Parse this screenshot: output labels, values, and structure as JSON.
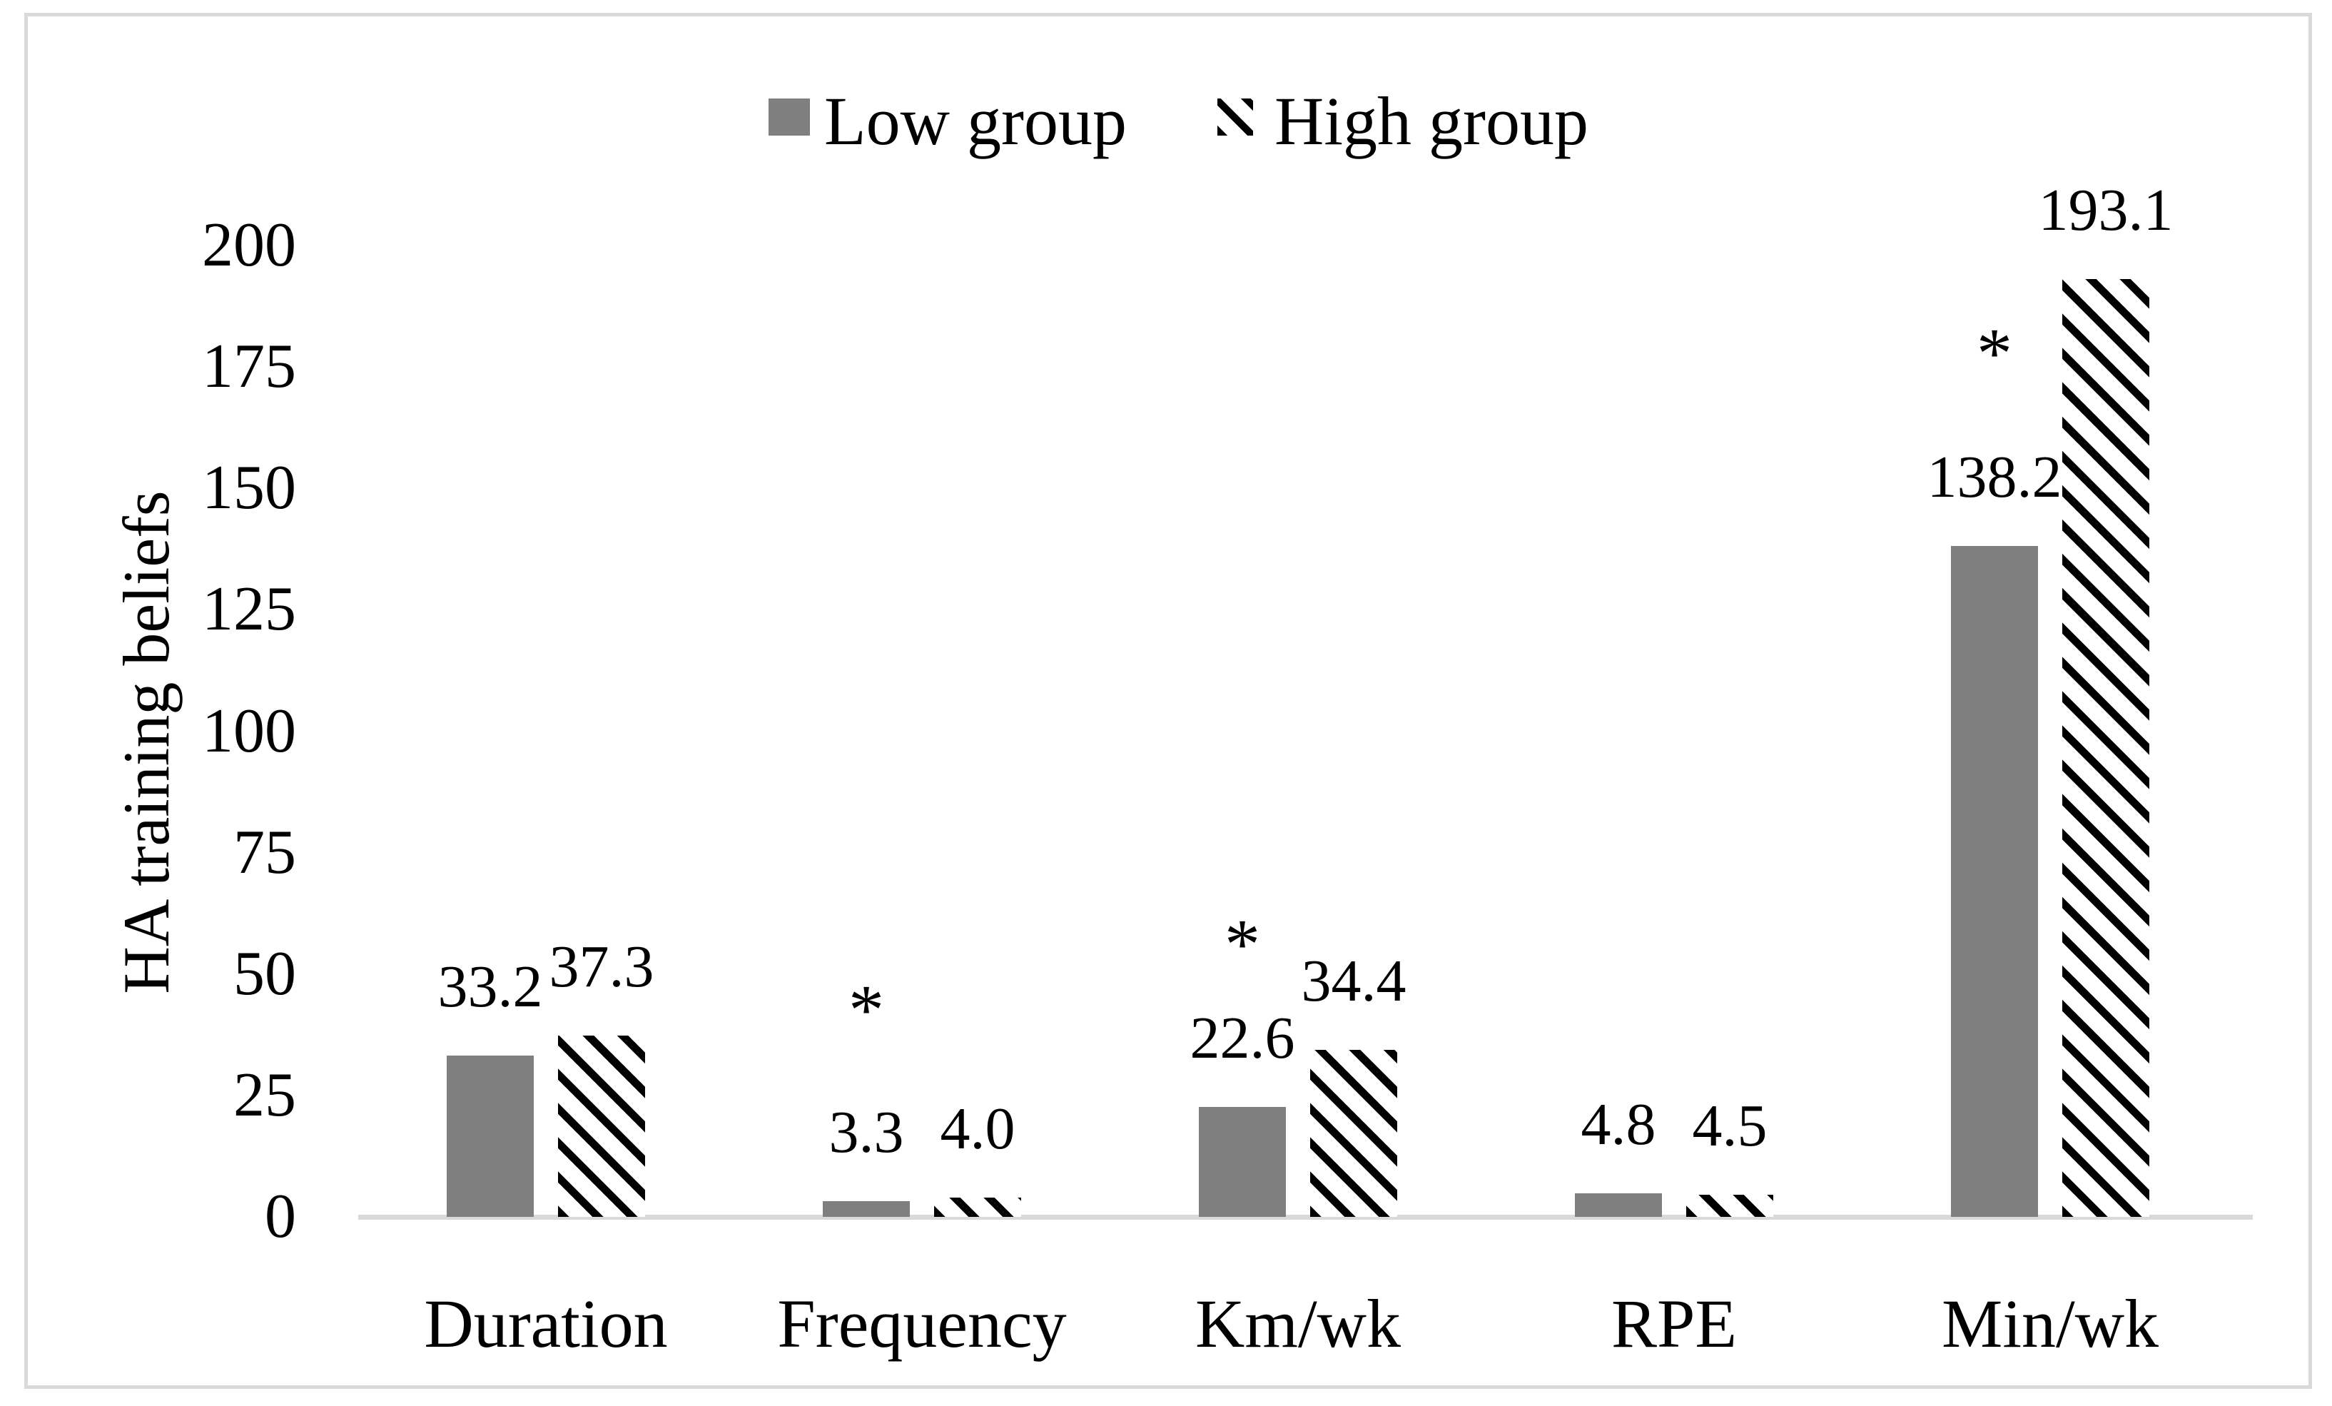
{
  "figure": {
    "kind": "journal-figure-bar-chart",
    "background": "#ffffff",
    "border_color": "#d9d9d9"
  },
  "legend": {
    "position": "top-center",
    "items": [
      {
        "label": "Low group",
        "swatch": "solid-gray-square"
      },
      {
        "label": "High group",
        "swatch": "diagonal-hatch-square"
      }
    ]
  },
  "chart_data": {
    "type": "bar",
    "title": "",
    "categories": [
      "Duration",
      "Frequency",
      "Km/wk",
      "RPE",
      "Min/wk"
    ],
    "series": [
      {
        "name": "Low group",
        "style": "solid",
        "color": "#7f7f7f",
        "values": [
          33.2,
          3.3,
          22.6,
          4.8,
          138.2
        ],
        "labels": [
          "33.2",
          "3.3",
          "22.6",
          "4.8",
          "138.2"
        ]
      },
      {
        "name": "High group",
        "style": "diagonal-hatch",
        "color": "#000000",
        "values": [
          37.3,
          4.0,
          34.4,
          4.5,
          193.1
        ],
        "labels": [
          "37.3",
          "4.0",
          "34.4",
          "4.5",
          "193.1"
        ]
      }
    ],
    "significance_markers": {
      "symbol": "*",
      "categories": [
        "Frequency",
        "Km/wk",
        "Min/wk"
      ]
    },
    "xlabel": "",
    "ylabel": "HA training beliefs",
    "yticks": [
      "0",
      "25",
      "50",
      "75",
      "100",
      "125",
      "150",
      "175",
      "200"
    ],
    "ylim": [
      0,
      200
    ],
    "grid": false,
    "legend_position": "top-center",
    "axis_color": "#d9d9d9",
    "bar_gray": "#7f7f7f"
  }
}
